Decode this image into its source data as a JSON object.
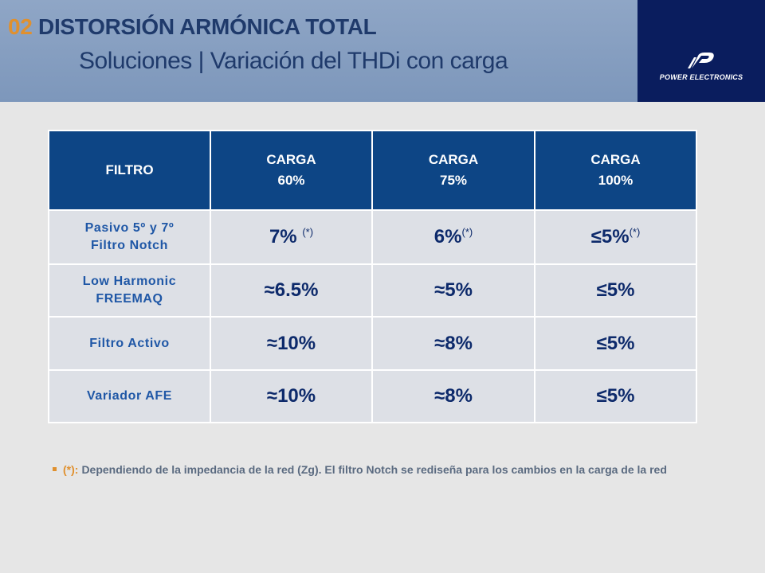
{
  "header": {
    "number": "02",
    "title": "DISTORSIÓN ARMÓNICA TOTAL",
    "subtitle": "Soluciones | Variación del THDi con carga"
  },
  "logo": {
    "brand": "POWER ELECTRONICS",
    "icon": "power-electronics-logo-icon",
    "colors": {
      "background": "#0a1d5e",
      "mark": "#ffffff"
    }
  },
  "colors": {
    "header_bg": "#8fa6c6",
    "title": "#1f3a6b",
    "accent": "#e0902e",
    "table_header": "#0d4585",
    "table_cell": "#dde0e6"
  },
  "table": {
    "headers": [
      {
        "line1": "FILTRO",
        "line2": ""
      },
      {
        "line1": "CARGA",
        "line2": "60%"
      },
      {
        "line1": "CARGA",
        "line2": "75%"
      },
      {
        "line1": "CARGA",
        "line2": "100%"
      }
    ],
    "rows": [
      {
        "name_line1": "Pasivo 5º y 7º",
        "name_line2": "Filtro Notch",
        "cells": [
          {
            "value": "7%",
            "note": "(*)"
          },
          {
            "value": "6%",
            "note": "(*)"
          },
          {
            "value": "≤5%",
            "note": "(*)"
          }
        ]
      },
      {
        "name_line1": "Low Harmonic",
        "name_line2": "FREEMAQ",
        "cells": [
          {
            "value": "≈6.5%",
            "note": ""
          },
          {
            "value": "≈5%",
            "note": ""
          },
          {
            "value": "≤5%",
            "note": ""
          }
        ]
      },
      {
        "name_line1": "Filtro Activo",
        "name_line2": "",
        "cells": [
          {
            "value": "≈10%",
            "note": ""
          },
          {
            "value": "≈8%",
            "note": ""
          },
          {
            "value": "≤5%",
            "note": ""
          }
        ]
      },
      {
        "name_line1": "Variador AFE",
        "name_line2": "",
        "cells": [
          {
            "value": "≈10%",
            "note": ""
          },
          {
            "value": "≈8%",
            "note": ""
          },
          {
            "value": "≤5%",
            "note": ""
          }
        ]
      }
    ]
  },
  "footnote": {
    "key": "(*):",
    "text": "Dependiendo de la impedancia de la red (Zg). El filtro Notch se rediseña para los cambios en la carga de la red"
  }
}
